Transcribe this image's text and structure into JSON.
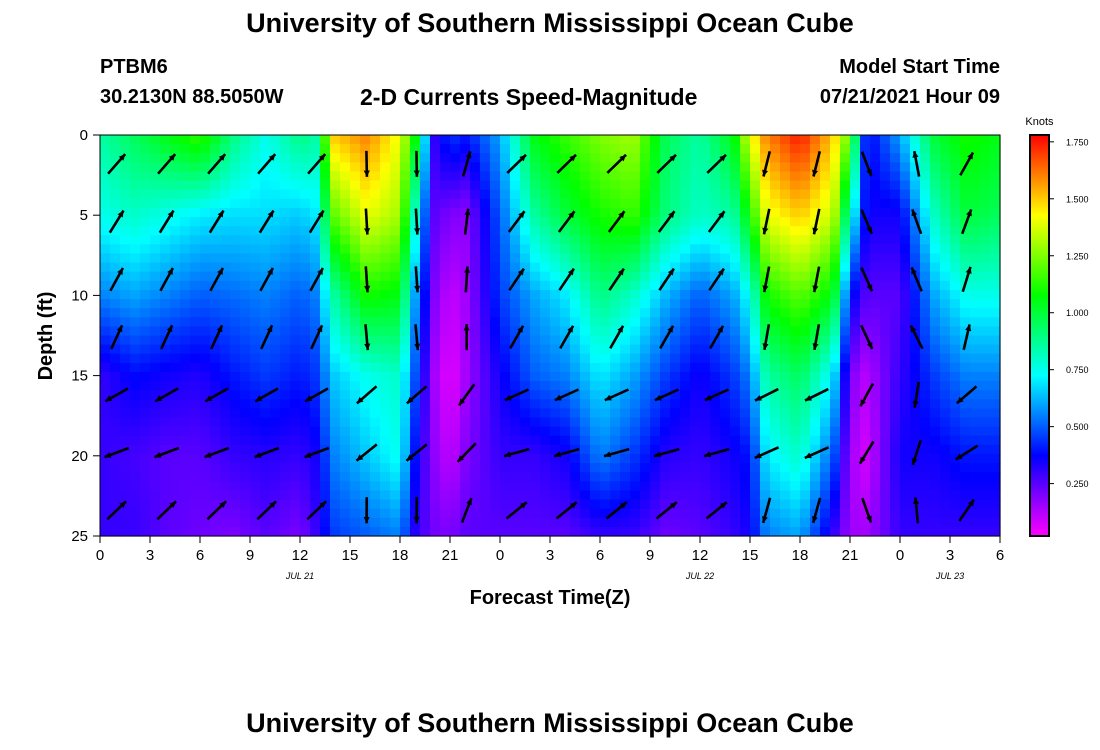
{
  "page": {
    "title_top": "University of Southern Mississippi Ocean Cube",
    "title_bottom": "University of Southern Mississippi Ocean Cube",
    "station_id": "PTBM6",
    "coordinates": "30.2130N  88.5050W",
    "subtitle": "2-D Currents Speed-Magnitude",
    "model_start_label": "Model Start Time",
    "model_start_value": "07/21/2021 Hour 09"
  },
  "chart_data": {
    "type": "heatmap",
    "title": "2-D Currents Speed-Magnitude",
    "xlabel": "Forecast Time(Z)",
    "ylabel": "Depth (ft)",
    "x_tick_labels": [
      "0",
      "3",
      "6",
      "9",
      "12",
      "15",
      "18",
      "21",
      "0",
      "3",
      "6",
      "9",
      "12",
      "15",
      "18",
      "21",
      "0",
      "3",
      "6"
    ],
    "x_range_hours": [
      0,
      54
    ],
    "date_labels": [
      {
        "text": "JUL 21",
        "hour": 12
      },
      {
        "text": "JUL 22",
        "hour": 36
      },
      {
        "text": "JUL 23",
        "hour": 51
      }
    ],
    "y_ticks": [
      0,
      5,
      10,
      15,
      20,
      25
    ],
    "y_range_ft": [
      0,
      25
    ],
    "colorbar": {
      "title": "Knots",
      "ticks": [
        "1.750",
        "1.500",
        "1.250",
        "1.000",
        "0.750",
        "0.500",
        "0.250"
      ],
      "tick_values": [
        1.75,
        1.5,
        1.25,
        1.0,
        0.75,
        0.5,
        0.25
      ],
      "range": [
        0.02,
        1.78
      ]
    },
    "speed_profile_hours": [
      0,
      2,
      4,
      6,
      8,
      10,
      12,
      13,
      14,
      16,
      18,
      19,
      20,
      21,
      22,
      24,
      26,
      28,
      30,
      32,
      34,
      36,
      38,
      39,
      40,
      42,
      44,
      45,
      46,
      48,
      50,
      52,
      54
    ],
    "speed_profile_depths_ft": [
      0,
      5,
      10,
      15,
      20,
      25
    ],
    "speed_profile_knots": [
      [
        0.85,
        0.75,
        0.55,
        0.3,
        0.3,
        0.3
      ],
      [
        0.95,
        0.8,
        0.6,
        0.38,
        0.28,
        0.3
      ],
      [
        1.05,
        0.75,
        0.55,
        0.35,
        0.25,
        0.25
      ],
      [
        1.15,
        0.7,
        0.5,
        0.33,
        0.25,
        0.22
      ],
      [
        0.9,
        0.68,
        0.52,
        0.4,
        0.3,
        0.2
      ],
      [
        0.75,
        0.68,
        0.55,
        0.45,
        0.32,
        0.25
      ],
      [
        0.9,
        0.65,
        0.5,
        0.4,
        0.3,
        0.2
      ],
      [
        0.85,
        0.7,
        0.55,
        0.45,
        0.35,
        0.3
      ],
      [
        1.5,
        1.2,
        0.85,
        0.65,
        0.55,
        0.45
      ],
      [
        1.6,
        1.4,
        1.1,
        0.75,
        0.65,
        0.5
      ],
      [
        1.4,
        1.3,
        1.05,
        0.8,
        0.75,
        0.55
      ],
      [
        1.05,
        0.75,
        0.55,
        0.45,
        0.35,
        0.3
      ],
      [
        0.3,
        0.25,
        0.2,
        0.15,
        0.18,
        0.22
      ],
      [
        0.45,
        0.2,
        0.1,
        0.05,
        0.1,
        0.2
      ],
      [
        0.4,
        0.18,
        0.15,
        0.15,
        0.2,
        0.25
      ],
      [
        0.6,
        0.5,
        0.45,
        0.35,
        0.3,
        0.25
      ],
      [
        1.05,
        0.85,
        0.6,
        0.5,
        0.3,
        0.25
      ],
      [
        1.15,
        1.0,
        0.7,
        0.55,
        0.35,
        0.25
      ],
      [
        1.25,
        1.1,
        0.9,
        0.7,
        0.55,
        0.3
      ],
      [
        1.3,
        1.15,
        0.8,
        0.6,
        0.45,
        0.3
      ],
      [
        0.95,
        0.9,
        0.62,
        0.45,
        0.32,
        0.22
      ],
      [
        0.85,
        0.8,
        0.5,
        0.35,
        0.3,
        0.25
      ],
      [
        1.05,
        0.85,
        0.6,
        0.45,
        0.35,
        0.3
      ],
      [
        1.4,
        1.1,
        0.75,
        0.55,
        0.4,
        0.35
      ],
      [
        1.6,
        1.4,
        1.1,
        0.85,
        0.7,
        0.55
      ],
      [
        1.75,
        1.5,
        1.2,
        0.95,
        0.8,
        0.6
      ],
      [
        1.5,
        1.35,
        1.05,
        0.7,
        0.5,
        0.3
      ],
      [
        1.2,
        0.8,
        0.4,
        0.2,
        0.15,
        0.15
      ],
      [
        0.35,
        0.35,
        0.25,
        0.12,
        0.08,
        0.15
      ],
      [
        0.6,
        0.35,
        0.25,
        0.3,
        0.35,
        0.3
      ],
      [
        1.0,
        0.8,
        0.6,
        0.45,
        0.35,
        0.3
      ],
      [
        1.1,
        1.0,
        0.75,
        0.55,
        0.4,
        0.3
      ],
      [
        1.05,
        0.95,
        0.75,
        0.55,
        0.4,
        0.3
      ]
    ],
    "direction_profile_deg": [
      35,
      12,
      5,
      355,
      15,
      45
    ],
    "direction_time_profile_hours": [
      0,
      13,
      14,
      19,
      20,
      21,
      22,
      24,
      25,
      38,
      39,
      44,
      45,
      47,
      48,
      54
    ],
    "direction_time_profile_deg": [
      25,
      25,
      175,
      175,
      175,
      190,
      0,
      20,
      30,
      30,
      190,
      190,
      160,
      150,
      320,
      40
    ]
  }
}
